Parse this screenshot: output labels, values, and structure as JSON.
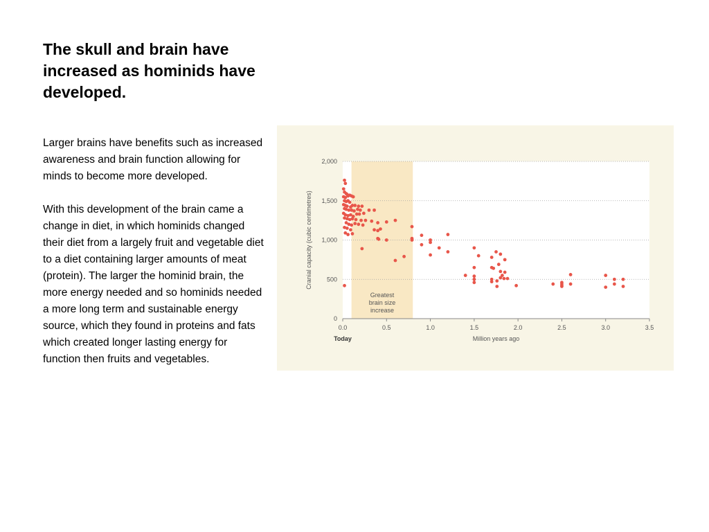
{
  "slide": {
    "title": "The skull and brain have increased as hominids have developed.",
    "paragraphs": [
      "Larger brains have benefits such as increased awareness and brain function allowing for minds to become more developed.",
      "With this development of the brain came a change in diet, in which hominids changed their diet from a largely fruit and vegetable diet to a diet containing larger amounts of meat (protein). The larger the hominid brain, the more energy needed and so hominids needed a more long term and sustainable energy source, which they found in proteins and fats which created longer lasting energy for function then fruits and vegetables."
    ]
  },
  "colors": {
    "panel_bg": "#f8f5e6",
    "plot_bg": "#ffffff",
    "highlight_band": "#f9e8c4",
    "points": "#e8564a",
    "axis_text": "#555555",
    "gridline": "#a0a0a0"
  },
  "chart_data": {
    "type": "scatter",
    "xlabel": "Million years ago",
    "ylabel": "Cranial capacity (cubic centimetres)",
    "x_origin_label": "Today",
    "xlim": [
      0.0,
      3.5
    ],
    "ylim": [
      0,
      2000
    ],
    "xticks": [
      "0.0",
      "0.5",
      "1.0",
      "1.5",
      "2.0",
      "2.5",
      "3.0",
      "3.5"
    ],
    "xtick_values": [
      0.0,
      0.5,
      1.0,
      1.5,
      2.0,
      2.5,
      3.0,
      3.5
    ],
    "yticks": [
      "0",
      "500",
      "1,000",
      "1,500",
      "2,000"
    ],
    "ytick_values": [
      0,
      500,
      1000,
      1500,
      2000
    ],
    "grid": "horizontal dotted",
    "highlight": {
      "x_range": [
        0.1,
        0.8
      ],
      "label": [
        "Greatest",
        "brain size",
        "increase"
      ]
    },
    "points": [
      [
        0.02,
        1760
      ],
      [
        0.03,
        1720
      ],
      [
        0.01,
        1650
      ],
      [
        0.02,
        1610
      ],
      [
        0.04,
        1590
      ],
      [
        0.05,
        1580
      ],
      [
        0.01,
        1550
      ],
      [
        0.03,
        1540
      ],
      [
        0.06,
        1560
      ],
      [
        0.08,
        1570
      ],
      [
        0.1,
        1560
      ],
      [
        0.12,
        1550
      ],
      [
        0.02,
        1500
      ],
      [
        0.04,
        1490
      ],
      [
        0.06,
        1500
      ],
      [
        0.08,
        1480
      ],
      [
        0.01,
        1450
      ],
      [
        0.03,
        1440
      ],
      [
        0.05,
        1430
      ],
      [
        0.09,
        1420
      ],
      [
        0.11,
        1440
      ],
      [
        0.14,
        1440
      ],
      [
        0.18,
        1430
      ],
      [
        0.22,
        1430
      ],
      [
        0.02,
        1400
      ],
      [
        0.04,
        1390
      ],
      [
        0.07,
        1380
      ],
      [
        0.1,
        1380
      ],
      [
        0.13,
        1370
      ],
      [
        0.17,
        1390
      ],
      [
        0.2,
        1380
      ],
      [
        0.3,
        1380
      ],
      [
        0.36,
        1380
      ],
      [
        0.01,
        1340
      ],
      [
        0.03,
        1320
      ],
      [
        0.06,
        1310
      ],
      [
        0.09,
        1320
      ],
      [
        0.12,
        1300
      ],
      [
        0.16,
        1330
      ],
      [
        0.19,
        1330
      ],
      [
        0.24,
        1340
      ],
      [
        0.02,
        1280
      ],
      [
        0.05,
        1270
      ],
      [
        0.08,
        1260
      ],
      [
        0.11,
        1270
      ],
      [
        0.15,
        1260
      ],
      [
        0.21,
        1250
      ],
      [
        0.26,
        1250
      ],
      [
        0.33,
        1240
      ],
      [
        0.4,
        1220
      ],
      [
        0.5,
        1230
      ],
      [
        0.6,
        1250
      ],
      [
        0.04,
        1220
      ],
      [
        0.07,
        1200
      ],
      [
        0.1,
        1190
      ],
      [
        0.14,
        1210
      ],
      [
        0.18,
        1200
      ],
      [
        0.23,
        1190
      ],
      [
        0.02,
        1160
      ],
      [
        0.05,
        1150
      ],
      [
        0.09,
        1130
      ],
      [
        0.36,
        1130
      ],
      [
        0.4,
        1120
      ],
      [
        0.43,
        1140
      ],
      [
        0.03,
        1090
      ],
      [
        0.06,
        1070
      ],
      [
        0.11,
        1080
      ],
      [
        0.4,
        1020
      ],
      [
        0.41,
        1010
      ],
      [
        0.79,
        1170
      ],
      [
        0.79,
        1020
      ],
      [
        0.79,
        1000
      ],
      [
        0.9,
        1060
      ],
      [
        0.9,
        940
      ],
      [
        1.0,
        1000
      ],
      [
        1.0,
        970
      ],
      [
        1.0,
        810
      ],
      [
        1.1,
        900
      ],
      [
        1.2,
        1070
      ],
      [
        1.2,
        850
      ],
      [
        1.5,
        900
      ],
      [
        1.55,
        800
      ],
      [
        1.5,
        650
      ],
      [
        1.4,
        550
      ],
      [
        1.5,
        540
      ],
      [
        1.5,
        500
      ],
      [
        1.5,
        460
      ],
      [
        1.7,
        780
      ],
      [
        1.75,
        850
      ],
      [
        1.8,
        820
      ],
      [
        1.85,
        750
      ],
      [
        1.78,
        690
      ],
      [
        1.72,
        640
      ],
      [
        1.7,
        650
      ],
      [
        1.8,
        600
      ],
      [
        1.85,
        590
      ],
      [
        1.82,
        550
      ],
      [
        1.7,
        500
      ],
      [
        1.76,
        480
      ],
      [
        1.8,
        520
      ],
      [
        1.84,
        510
      ],
      [
        1.88,
        510
      ],
      [
        1.7,
        470
      ],
      [
        1.76,
        410
      ],
      [
        1.98,
        420
      ],
      [
        2.4,
        440
      ],
      [
        2.5,
        460
      ],
      [
        2.5,
        440
      ],
      [
        2.5,
        420
      ],
      [
        2.5,
        410
      ],
      [
        2.6,
        560
      ],
      [
        2.6,
        440
      ],
      [
        3.0,
        550
      ],
      [
        3.0,
        400
      ],
      [
        3.1,
        500
      ],
      [
        3.1,
        440
      ],
      [
        3.2,
        500
      ],
      [
        3.2,
        410
      ],
      [
        0.02,
        420
      ],
      [
        0.22,
        890
      ],
      [
        0.5,
        1000
      ],
      [
        0.6,
        740
      ],
      [
        0.7,
        790
      ]
    ]
  }
}
